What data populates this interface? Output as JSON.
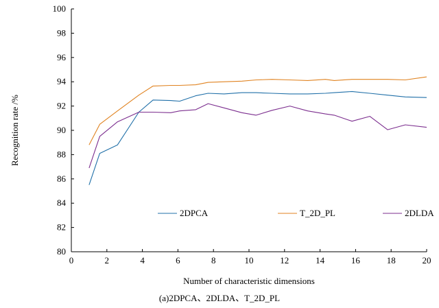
{
  "chart_data": {
    "type": "line",
    "xlabel": "Number of characteristic dimensions",
    "ylabel": "Recognition rate /%",
    "caption": "(a)2DPCA、2DLDA、T_2D_PL",
    "xlim": [
      0,
      20
    ],
    "ylim": [
      80,
      100
    ],
    "xticks": [
      0,
      2,
      4,
      6,
      8,
      10,
      12,
      14,
      16,
      18,
      20
    ],
    "yticks": [
      80,
      82,
      84,
      86,
      88,
      90,
      92,
      94,
      96,
      98,
      100
    ],
    "grid": false,
    "legend_position": "bottom-center",
    "x": [
      1,
      1.6,
      2.6,
      3.8,
      4.6,
      5.6,
      6.1,
      7,
      7.7,
      8.6,
      9.6,
      10.4,
      11.3,
      12.3,
      13.3,
      14.3,
      14.8,
      15.8,
      16.8,
      17.8,
      18.8,
      20
    ],
    "series": [
      {
        "name": "2DPCA",
        "color": "#1f6fa8",
        "values": [
          85.5,
          88.1,
          88.8,
          91.5,
          92.5,
          92.45,
          92.4,
          92.85,
          93.05,
          93.0,
          93.1,
          93.1,
          93.05,
          93.0,
          93.0,
          93.05,
          93.1,
          93.2,
          93.05,
          92.9,
          92.75,
          92.7
        ]
      },
      {
        "name": "T_2D_PL",
        "color": "#e0821f",
        "values": [
          88.8,
          90.5,
          91.6,
          92.9,
          93.65,
          93.7,
          93.7,
          93.75,
          93.95,
          94.0,
          94.05,
          94.15,
          94.2,
          94.15,
          94.1,
          94.2,
          94.1,
          94.2,
          94.2,
          94.2,
          94.15,
          94.4
        ]
      },
      {
        "name": "2DLDA",
        "color": "#7b2d8e",
        "values": [
          86.9,
          89.5,
          90.7,
          91.5,
          91.5,
          91.45,
          91.6,
          91.7,
          92.2,
          91.85,
          91.45,
          91.25,
          91.65,
          92.0,
          91.6,
          91.35,
          91.25,
          90.75,
          91.15,
          90.05,
          90.45,
          90.25
        ]
      }
    ]
  }
}
